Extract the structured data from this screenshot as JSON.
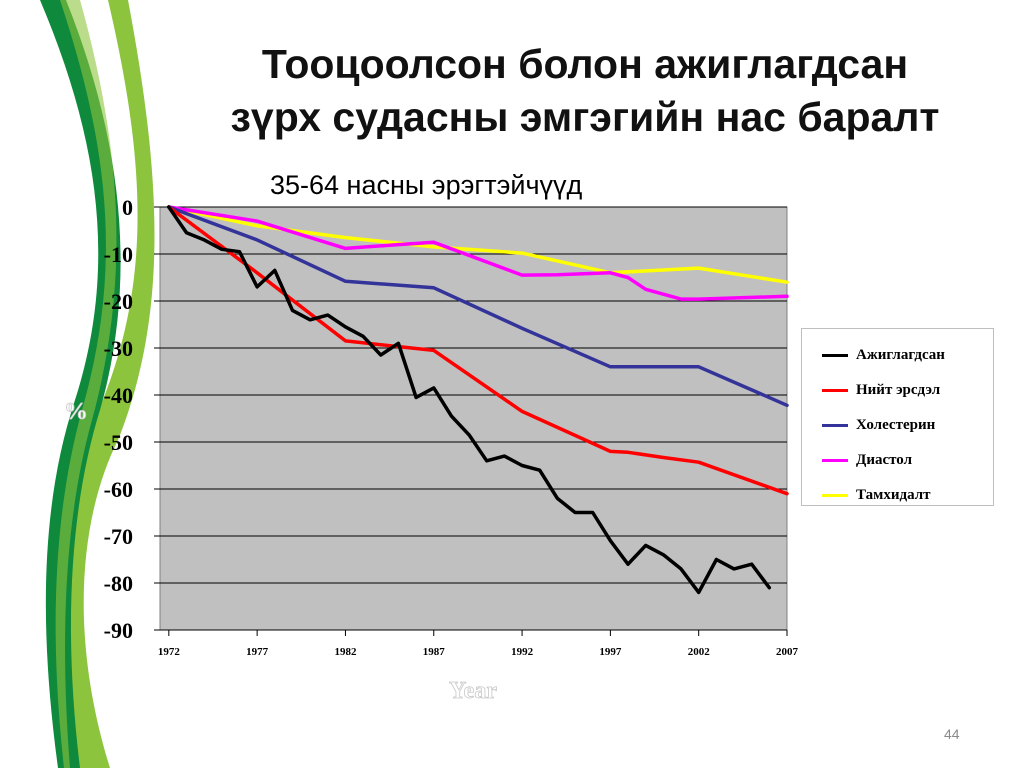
{
  "slide": {
    "title_line1": "Тооцоолсон болон ажиглагдсан",
    "title_line2": "зүрх судасны эмгэгийн нас баралт",
    "subtitle": "35-64 насны эрэгтэйчүүд",
    "page_number": "44"
  },
  "decor": {
    "dark_green": "#0f8a3c",
    "light_green": "#8cc43e"
  },
  "chart_data": {
    "type": "line",
    "xlabel": "Year",
    "ylabel": "%",
    "xlim": [
      1971.5,
      2007
    ],
    "ylim": [
      -90,
      0
    ],
    "x_ticks": [
      "1972",
      "1977",
      "1982",
      "1987",
      "1992",
      "1997",
      "2002",
      "2007"
    ],
    "y_ticks": [
      "0",
      "-10",
      "-20",
      "-30",
      "-40",
      "-50",
      "-60",
      "-70",
      "-80",
      "-90"
    ],
    "grid": true,
    "plot_background": "#c0c0c0",
    "legend_position": "right",
    "series": [
      {
        "name": "Ажиглагдсан",
        "color": "#000000",
        "x": [
          1972,
          1973,
          1974,
          1975,
          1976,
          1977,
          1978,
          1979,
          1980,
          1981,
          1982,
          1983,
          1984,
          1985,
          1986,
          1987,
          1988,
          1989,
          1990,
          1991,
          1992,
          1993,
          1994,
          1995,
          1996,
          1997,
          1998,
          1999,
          2000,
          2001,
          2002,
          2003,
          2004,
          2005,
          2006
        ],
        "values": [
          0,
          -5.5,
          -7,
          -9,
          -9.5,
          -17,
          -13.5,
          -22,
          -24,
          -23,
          -25.5,
          -27.5,
          -31.5,
          -29,
          -40.5,
          -38.5,
          -44.5,
          -48.5,
          -54,
          -53,
          -55,
          -56,
          -62,
          -65,
          -65,
          -71,
          -76,
          -72,
          -74,
          -77,
          -82,
          -75,
          -77,
          -76,
          -81
        ]
      },
      {
        "name": "Нийт эрсдэл",
        "color": "#ff0000",
        "x": [
          1972,
          1977,
          1982,
          1987,
          1992,
          1997,
          1998,
          2000,
          2002,
          2007
        ],
        "values": [
          0,
          -14,
          -28.5,
          -30.5,
          -43.5,
          -52,
          -52.2,
          -53.3,
          -54.3,
          -61
        ]
      },
      {
        "name": "Холестерин",
        "color": "#333399",
        "x": [
          1972,
          1977,
          1982,
          1987,
          1992,
          1997,
          2002,
          2007
        ],
        "values": [
          0,
          -7,
          -15.8,
          -17.2,
          -25.8,
          -34,
          -34,
          -42.2
        ]
      },
      {
        "name": "Диастол",
        "color": "#ff00ff",
        "x": [
          1972,
          1977,
          1982,
          1985,
          1987,
          1992,
          1994,
          1997,
          1998,
          1999,
          2001,
          2002,
          2007
        ],
        "values": [
          0,
          -3,
          -8.8,
          -8,
          -7.5,
          -14.5,
          -14.4,
          -14,
          -15,
          -17.5,
          -19.6,
          -19.6,
          -19
        ]
      },
      {
        "name": "Тамхидалт",
        "color": "#ffff00",
        "x": [
          1972,
          1977,
          1982,
          1987,
          1992,
          1997,
          2002,
          2007
        ],
        "values": [
          0,
          -4,
          -6.5,
          -8.5,
          -9.8,
          -14,
          -13,
          -16
        ]
      }
    ]
  }
}
